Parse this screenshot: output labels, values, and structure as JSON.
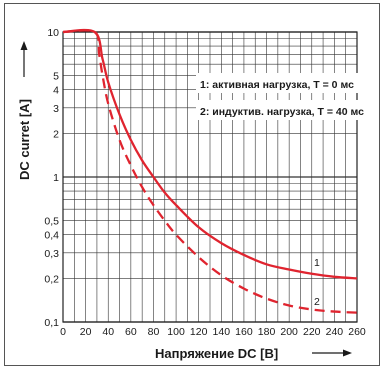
{
  "chart_data": {
    "type": "line",
    "ylabel": "DC curret [A]",
    "xlabel": "Напряжение DC [B]",
    "x_ticks": [
      "0",
      "20",
      "40",
      "60",
      "80",
      "100",
      "120",
      "140",
      "160",
      "180",
      "200",
      "220",
      "240",
      "260"
    ],
    "y_ticks": [
      "0,1",
      "0,2",
      "0,3",
      "0,4",
      "0,5",
      "1",
      "2",
      "3",
      "4",
      "5",
      "10"
    ],
    "y_scale": "log",
    "xlim": [
      0,
      260
    ],
    "ylim": [
      0.1,
      10
    ],
    "grid": true,
    "legend_position": "top-right",
    "legend": [
      "1: активная нагрузка, T = 0 мс",
      "2: индуктив. нагрузка, T = 40 мс"
    ],
    "series": [
      {
        "label": "1",
        "style": "solid",
        "color": "#e0242f",
        "x": [
          0,
          28,
          35,
          40,
          50,
          60,
          70,
          80,
          90,
          100,
          120,
          140,
          160,
          180,
          200,
          220,
          240,
          260
        ],
        "y": [
          10,
          10,
          6.5,
          4.5,
          2.7,
          1.8,
          1.3,
          1.0,
          0.78,
          0.64,
          0.45,
          0.35,
          0.29,
          0.25,
          0.23,
          0.215,
          0.205,
          0.2
        ]
      },
      {
        "label": "2",
        "style": "dashed",
        "color": "#e0242f",
        "x": [
          0,
          28,
          32,
          35,
          40,
          50,
          60,
          70,
          80,
          90,
          100,
          120,
          140,
          160,
          180,
          200,
          220,
          240,
          260
        ],
        "y": [
          10,
          10,
          7.0,
          5.0,
          3.2,
          1.8,
          1.2,
          0.85,
          0.64,
          0.5,
          0.4,
          0.28,
          0.21,
          0.17,
          0.145,
          0.13,
          0.122,
          0.118,
          0.116
        ]
      }
    ]
  }
}
